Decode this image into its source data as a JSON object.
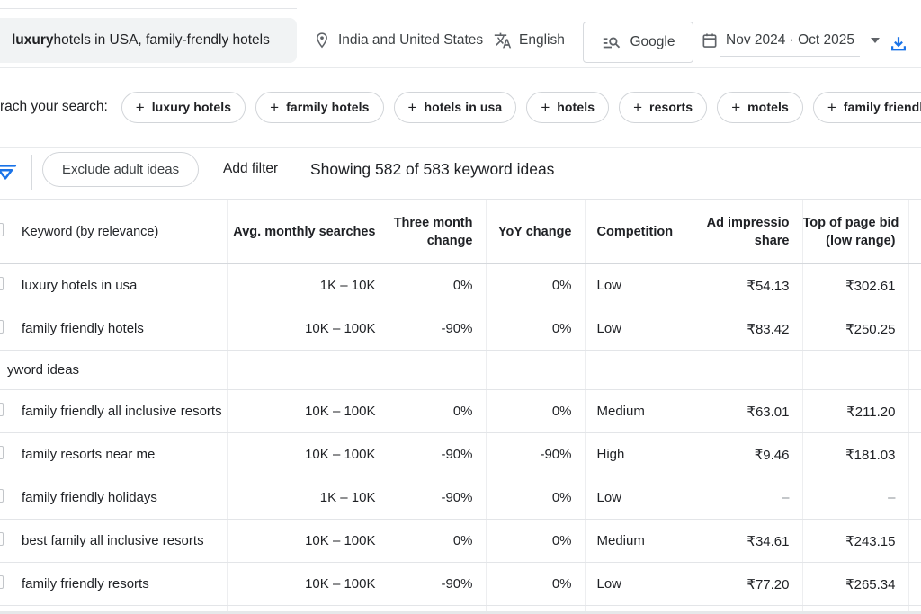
{
  "colors": {
    "accent_blue": "#1a73e8",
    "text_primary": "#202124",
    "text_secondary": "#3c4043",
    "border": "#dadce0",
    "search_box_bg": "#f1f3f4"
  },
  "topbar": {
    "query_bold": "luxury",
    "query_rest": " hotels in USA, family-frendly hotels",
    "location_label": "India and United States",
    "language_label": "English",
    "network_label": "Google",
    "date_range_label": "Nov 2024 · Oct 2025"
  },
  "refine_bar": {
    "label": "rach your search:",
    "plus_sign": "+",
    "chips": [
      {
        "label": "luxury hotels"
      },
      {
        "label": "farmily hotels"
      },
      {
        "label": "hotels in usa"
      },
      {
        "label": "hotels"
      },
      {
        "label": "resorts"
      },
      {
        "label": "motels"
      },
      {
        "label": "family friendly resort"
      }
    ]
  },
  "filter_bar": {
    "exclude_chip_label": "Exclude adult ideas",
    "add_filter_label": "Add filter",
    "results_summary": "Showing 582 of 583 keyword ideas"
  },
  "table": {
    "headers": {
      "keyword": "Keyword (by relevance)",
      "avg_monthly": "Avg. monthly searches",
      "three_month_line1": "Three month",
      "three_month_line2": "change",
      "yoy": "YoY change",
      "competition": "Competition",
      "ad_share_line1": "Ad impressio",
      "ad_share_line2": "share",
      "top_bid_line1": "Top of page bid",
      "top_bid_line2": "(low range)"
    },
    "section_label": "yword ideas",
    "rows": [
      {
        "keyword": "luxury hotels in usa",
        "avg": "1K – 10K",
        "three_month": "0%",
        "yoy": "0%",
        "competition": "Low",
        "ad_share": "₹54.13",
        "top_bid": "₹302.61"
      },
      {
        "keyword": "family friendly hotels",
        "avg": "10K – 100K",
        "three_month": "-90%",
        "yoy": "0%",
        "competition": "Low",
        "ad_share": "₹83.42",
        "top_bid": "₹250.25"
      },
      {
        "keyword": "family friendly all inclusive resorts",
        "avg": "10K – 100K",
        "three_month": "0%",
        "yoy": "0%",
        "competition": "Medium",
        "ad_share": "₹63.01",
        "top_bid": "₹211.20"
      },
      {
        "keyword": "family resorts near me",
        "avg": "10K – 100K",
        "three_month": "-90%",
        "yoy": "-90%",
        "competition": "High",
        "ad_share": "₹9.46",
        "top_bid": "₹181.03"
      },
      {
        "keyword": "family friendly holidays",
        "avg": "1K – 10K",
        "three_month": "-90%",
        "yoy": "0%",
        "competition": "Low",
        "ad_share": "–",
        "top_bid": "–"
      },
      {
        "keyword": "best family all inclusive resorts",
        "avg": "10K – 100K",
        "three_month": "0%",
        "yoy": "0%",
        "competition": "Medium",
        "ad_share": "₹34.61",
        "top_bid": "₹243.15"
      },
      {
        "keyword": "family friendly resorts",
        "avg": "10K – 100K",
        "three_month": "-90%",
        "yoy": "0%",
        "competition": "Low",
        "ad_share": "₹77.20",
        "top_bid": "₹265.34"
      }
    ]
  }
}
